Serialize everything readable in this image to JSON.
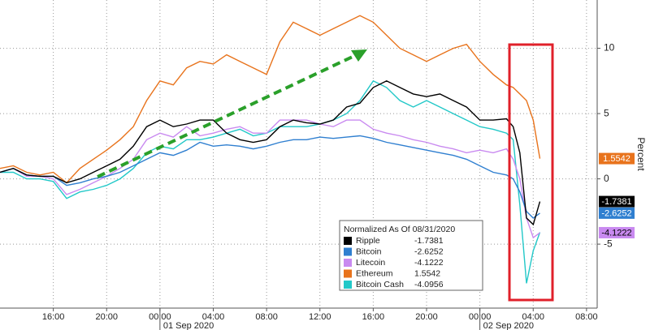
{
  "chart_data": {
    "type": "line",
    "legend_title": "Normalized As Of 08/31/2020",
    "y_label": "Percent",
    "x": [
      0,
      1,
      2,
      3,
      4,
      5,
      6,
      7,
      8,
      9,
      10,
      11,
      12,
      13,
      14,
      15,
      16,
      17,
      18,
      19,
      20,
      21,
      22,
      23,
      24,
      25,
      26,
      27,
      28,
      29,
      30,
      31,
      32,
      33,
      34,
      35,
      36,
      37,
      38,
      38.5,
      39,
      39.5,
      40,
      40.5
    ],
    "xlim": [
      0,
      44.8
    ],
    "xticks": [
      {
        "value": 4,
        "label": "16:00"
      },
      {
        "value": 8,
        "label": "20:00"
      },
      {
        "value": 12,
        "label": "00:00"
      },
      {
        "value": 16,
        "label": "04:00"
      },
      {
        "value": 20,
        "label": "08:00"
      },
      {
        "value": 24,
        "label": "12:00"
      },
      {
        "value": 28,
        "label": "16:00"
      },
      {
        "value": 32,
        "label": "20:00"
      },
      {
        "value": 36,
        "label": "00:00"
      },
      {
        "value": 40,
        "label": "04:00"
      },
      {
        "value": 44,
        "label": "08:00"
      }
    ],
    "x_dates": [
      {
        "value": 12,
        "label": "01 Sep 2020"
      },
      {
        "value": 36,
        "label": "02 Sep 2020"
      }
    ],
    "ylim": [
      -9.9,
      13.7
    ],
    "yticks": [
      -5,
      0,
      5,
      10
    ],
    "grid": true,
    "series": [
      {
        "name": "Ripple",
        "color": "#000000",
        "tag": true,
        "values": [
          0.5,
          0.8,
          0.3,
          0.2,
          0.2,
          -0.3,
          0,
          0.5,
          1,
          1.5,
          2.5,
          4,
          4.5,
          4,
          4.2,
          4.5,
          4.5,
          3.5,
          3,
          2.8,
          3,
          4,
          4.5,
          4.3,
          4.2,
          4.5,
          5.5,
          5.8,
          7,
          7.5,
          7,
          6.5,
          6.3,
          6.5,
          6,
          5.5,
          4.5,
          4.5,
          4.6,
          4,
          2,
          -3,
          -3.5,
          -1.7381
        ]
      },
      {
        "name": "Bitcoin",
        "color": "#2f7fd0",
        "tag": true,
        "values": [
          0.5,
          0.8,
          0.3,
          0.2,
          0.2,
          -0.5,
          -0.3,
          0,
          0.2,
          0.5,
          1,
          1.5,
          2,
          1.8,
          2.2,
          2.8,
          2.5,
          2.6,
          2.5,
          2.3,
          2.5,
          2.8,
          3,
          3,
          3.2,
          3.1,
          3.2,
          3.3,
          3.1,
          2.8,
          2.6,
          2.4,
          2.2,
          2,
          1.8,
          1.5,
          1,
          0.5,
          0.3,
          0,
          -1,
          -2.5,
          -3,
          -2.6252
        ]
      },
      {
        "name": "Litecoin",
        "color": "#c98af0",
        "tag": true,
        "values": [
          0.5,
          0.8,
          0.2,
          0.2,
          0,
          -1.2,
          -0.8,
          -0.3,
          0.2,
          0.8,
          1.5,
          3,
          3.5,
          3.2,
          4,
          3.3,
          3.5,
          3.8,
          4,
          3.5,
          3.5,
          4.5,
          4.5,
          4.5,
          4.2,
          4,
          4.5,
          4.5,
          3.8,
          3.5,
          3.3,
          3,
          2.8,
          2.5,
          2.3,
          2,
          2.2,
          2,
          2.3,
          1.5,
          0,
          -3,
          -4.5,
          -4.1222
        ]
      },
      {
        "name": "Ethereum",
        "color": "#e8731c",
        "tag": true,
        "values": [
          0.8,
          1,
          0.5,
          0.3,
          0.5,
          -0.3,
          0.8,
          1.5,
          2.2,
          3,
          4,
          6,
          7.5,
          7.2,
          8.5,
          9,
          8.8,
          9.5,
          9,
          8.5,
          8,
          10.5,
          12,
          11.5,
          11,
          11.5,
          12,
          12.5,
          12,
          11,
          10,
          9.5,
          9,
          9.5,
          10,
          10.3,
          9,
          8,
          7.2,
          7,
          6.5,
          6,
          4.5,
          1.5542
        ]
      },
      {
        "name": "Bitcoin Cash",
        "color": "#22c8c8",
        "tag": false,
        "values": [
          0.5,
          0.5,
          0,
          0,
          -0.2,
          -1.5,
          -1,
          -0.8,
          -0.5,
          0,
          0.8,
          2,
          2.5,
          2.3,
          3,
          3,
          3.2,
          3.5,
          3.8,
          3.3,
          3.5,
          4,
          4,
          4,
          4.2,
          4.5,
          5,
          6,
          7.5,
          7,
          6,
          5.5,
          6,
          5.5,
          5,
          4.5,
          4,
          3.8,
          3.5,
          3,
          -2,
          -8,
          -5.5,
          -4.0956
        ]
      }
    ]
  }
}
